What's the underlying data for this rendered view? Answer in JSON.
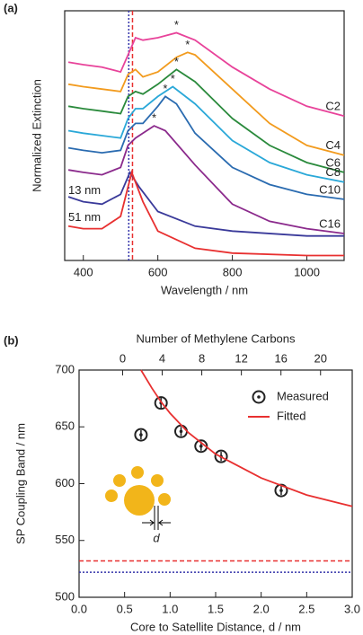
{
  "chart_data": [
    {
      "type": "line",
      "panel_label": "(a)",
      "x_label": "Wavelength / nm",
      "y_label": "Normalized Extinction",
      "xlim": [
        350,
        1100
      ],
      "xticks": [
        400,
        600,
        800,
        1000
      ],
      "ylim": [
        0,
        10.2
      ],
      "series": [
        {
          "name": "C2",
          "color": "#e8439a",
          "x": [
            360,
            400,
            450,
            500,
            520,
            540,
            560,
            600,
            650,
            700,
            800,
            900,
            1000,
            1100
          ],
          "values": [
            8.1,
            8.0,
            7.9,
            7.7,
            8.4,
            9.1,
            9.0,
            9.1,
            9.3,
            9.0,
            7.9,
            7.0,
            6.3,
            5.9
          ]
        },
        {
          "name": "C4",
          "color": "#f29b1e",
          "x": [
            360,
            400,
            450,
            500,
            520,
            540,
            560,
            600,
            650,
            680,
            700,
            800,
            900,
            1000,
            1100
          ],
          "values": [
            7.2,
            7.1,
            7.0,
            6.9,
            7.6,
            7.8,
            7.5,
            7.7,
            8.3,
            8.5,
            8.4,
            7.0,
            5.6,
            4.7,
            4.3
          ]
        },
        {
          "name": "C6",
          "color": "#2a8a3c",
          "x": [
            360,
            400,
            450,
            500,
            520,
            540,
            560,
            600,
            650,
            700,
            800,
            900,
            1000,
            1100
          ],
          "values": [
            6.3,
            6.2,
            6.1,
            6.0,
            6.7,
            6.9,
            6.8,
            7.2,
            7.8,
            7.3,
            5.8,
            4.7,
            4.0,
            3.6
          ]
        },
        {
          "name": "C8",
          "color": "#2aa8d8",
          "x": [
            360,
            400,
            450,
            500,
            520,
            540,
            560,
            600,
            640,
            700,
            800,
            900,
            1000,
            1100
          ],
          "values": [
            5.3,
            5.2,
            5.1,
            5.0,
            5.8,
            6.2,
            6.2,
            6.7,
            7.1,
            6.4,
            4.9,
            4.0,
            3.5,
            3.2
          ]
        },
        {
          "name": "C10",
          "color": "#2a6bb0",
          "x": [
            360,
            400,
            450,
            500,
            520,
            540,
            560,
            600,
            620,
            650,
            700,
            800,
            900,
            1000,
            1100
          ],
          "values": [
            4.6,
            4.5,
            4.4,
            4.5,
            5.3,
            5.6,
            5.6,
            6.3,
            6.7,
            6.4,
            5.2,
            3.8,
            3.1,
            2.7,
            2.5
          ]
        },
        {
          "name": "C16",
          "color": "#8b2a8c",
          "x": [
            360,
            400,
            450,
            500,
            520,
            540,
            560,
            590,
            620,
            700,
            800,
            900,
            1000,
            1100
          ],
          "values": [
            3.7,
            3.6,
            3.5,
            3.8,
            4.7,
            5.0,
            5.2,
            5.5,
            5.3,
            3.9,
            2.3,
            1.6,
            1.3,
            1.1
          ]
        },
        {
          "name": "13 nm",
          "color": "#3a3a9a",
          "x": [
            360,
            400,
            450,
            500,
            525,
            550,
            600,
            700,
            800,
            1000,
            1100
          ],
          "values": [
            2.6,
            2.4,
            2.3,
            2.7,
            3.6,
            3.0,
            2.0,
            1.4,
            1.2,
            1.0,
            1.0
          ]
        },
        {
          "name": "51 nm",
          "color": "#e83030",
          "x": [
            360,
            400,
            450,
            500,
            530,
            560,
            600,
            700,
            800,
            1000,
            1100
          ],
          "values": [
            1.4,
            1.3,
            1.3,
            1.8,
            3.6,
            2.4,
            1.2,
            0.5,
            0.3,
            0.2,
            0.2
          ]
        }
      ],
      "annotations": [
        {
          "text": "*",
          "x": 650,
          "y": 9.3
        },
        {
          "text": "*",
          "x": 680,
          "y": 8.5
        },
        {
          "text": "*",
          "x": 650,
          "y": 7.8
        },
        {
          "text": "*",
          "x": 640,
          "y": 7.1
        },
        {
          "text": "*",
          "x": 620,
          "y": 6.7
        },
        {
          "text": "*",
          "x": 590,
          "y": 5.5
        }
      ],
      "vlines": [
        {
          "x": 522,
          "color": "#3333aa",
          "style": "dotted"
        },
        {
          "x": 532,
          "color": "#e83030",
          "style": "dashed"
        }
      ]
    },
    {
      "type": "scatter",
      "panel_label": "(b)",
      "x_label": "Core to Satellite Distance, d / nm",
      "y_label": "SP Coupling Band / nm",
      "x2_label": "Number of Methylene Carbons",
      "xlim": [
        0,
        3
      ],
      "xticks": [
        {
          "value": 0,
          "label": "0.0"
        },
        0.5,
        {
          "value": 1,
          "label": "1.0"
        },
        1.5,
        {
          "value": 2,
          "label": "2.0"
        },
        2.5,
        {
          "value": 3,
          "label": "3.0"
        }
      ],
      "x2lim": [
        -4.4,
        23.2
      ],
      "x2ticks": [
        0,
        4,
        8,
        12,
        16,
        20
      ],
      "ylim": [
        500,
        700
      ],
      "yticks": [
        500,
        550,
        600,
        650,
        700
      ],
      "series": [
        {
          "name": "Measured",
          "type": "scatter",
          "color": "#222222",
          "x": [
            0.68,
            0.9,
            1.12,
            1.34,
            1.56,
            2.22
          ],
          "values": [
            643,
            671,
            646,
            633,
            624,
            594
          ],
          "errors": [
            4,
            5,
            4,
            4,
            4,
            4
          ]
        },
        {
          "name": "Fitted",
          "type": "line",
          "color": "#e83030",
          "x": [
            0.68,
            0.8,
            0.9,
            1.0,
            1.2,
            1.5,
            2.0,
            2.5,
            3.0
          ],
          "values": [
            700,
            684,
            672,
            662,
            645,
            626,
            605,
            590,
            580
          ]
        }
      ],
      "hlines": [
        {
          "y": 532,
          "color": "#e83030",
          "style": "dashed"
        },
        {
          "y": 522,
          "color": "#3333aa",
          "style": "dotted"
        }
      ],
      "inset_label": "d"
    }
  ]
}
